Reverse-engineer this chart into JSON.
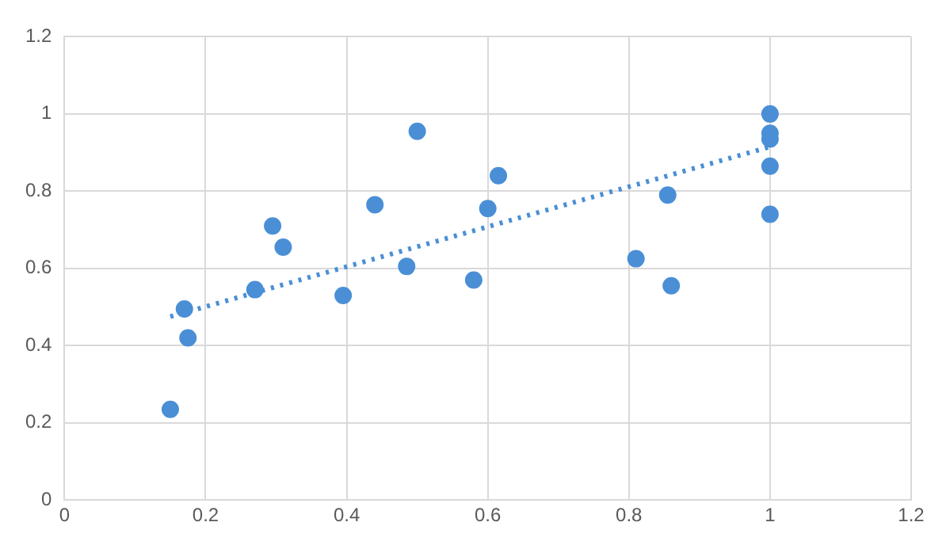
{
  "chart_data": {
    "type": "scatter",
    "xlim": [
      0,
      1.2
    ],
    "xticks": [
      0,
      0.2,
      0.4,
      0.6,
      0.8,
      1,
      1.2
    ],
    "ylim": [
      0,
      1.2
    ],
    "yticks": [
      0,
      0.2,
      0.4,
      0.6,
      0.8,
      1,
      1.2
    ],
    "grid": true,
    "legend": false,
    "marker": "circle",
    "series": [
      {
        "color": "#4a8fd6",
        "x": [
          0.15,
          0.17,
          0.175,
          0.27,
          0.295,
          0.31,
          0.395,
          0.44,
          0.485,
          0.5,
          0.58,
          0.6,
          0.615,
          0.81,
          0.855,
          0.86,
          1,
          1,
          1,
          1,
          1
        ],
        "values": [
          0.235,
          0.495,
          0.42,
          0.545,
          0.71,
          0.655,
          0.53,
          0.765,
          0.605,
          0.955,
          0.57,
          0.755,
          0.84,
          0.625,
          0.79,
          0.555,
          1,
          0.95,
          0.935,
          0.865,
          0.74
        ]
      },
      {
        "type": "line",
        "color": "#4a8fd6",
        "line_style": "dotted",
        "marker": "none",
        "x": [
          0.15,
          1
        ],
        "values": [
          0.475,
          0.915
        ]
      }
    ]
  }
}
